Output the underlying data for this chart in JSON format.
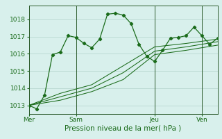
{
  "title": "",
  "xlabel": "Pression niveau de la mer( hPa )",
  "ylim": [
    1012.5,
    1018.8
  ],
  "yticks": [
    1013,
    1014,
    1015,
    1016,
    1017,
    1018
  ],
  "bg_color": "#d8f0ec",
  "grid_color": "#b8d8d0",
  "line_color": "#1a6b1a",
  "day_labels": [
    "Mer",
    "Sam",
    "Jeu",
    "Ven"
  ],
  "day_positions": [
    0,
    3,
    8,
    11
  ],
  "series1": {
    "x": [
      0,
      0.5,
      1,
      1.5,
      2,
      2.5,
      3,
      3.5,
      4,
      4.5,
      5,
      5.5,
      6,
      6.5,
      7,
      7.5,
      8,
      8.5,
      9,
      9.5,
      10,
      10.5,
      11,
      11.5,
      12
    ],
    "y": [
      1013.0,
      1012.8,
      1013.6,
      1015.95,
      1016.1,
      1017.05,
      1016.95,
      1016.6,
      1016.35,
      1016.85,
      1018.3,
      1018.35,
      1018.25,
      1017.75,
      1016.55,
      1015.85,
      1015.55,
      1016.2,
      1016.9,
      1016.95,
      1017.05,
      1017.55,
      1017.05,
      1016.55,
      1016.9
    ]
  },
  "series2": {
    "x": [
      0,
      2,
      4,
      6,
      8,
      10,
      12
    ],
    "y": [
      1013.0,
      1013.7,
      1014.2,
      1015.3,
      1016.4,
      1016.6,
      1016.85
    ]
  },
  "series3": {
    "x": [
      0,
      2,
      4,
      6,
      8,
      10,
      12
    ],
    "y": [
      1013.0,
      1013.5,
      1014.0,
      1014.9,
      1016.15,
      1016.4,
      1016.7
    ]
  },
  "series4": {
    "x": [
      0,
      2,
      4,
      6,
      8,
      10,
      12
    ],
    "y": [
      1013.0,
      1013.3,
      1013.8,
      1014.5,
      1015.95,
      1016.2,
      1016.5
    ]
  }
}
